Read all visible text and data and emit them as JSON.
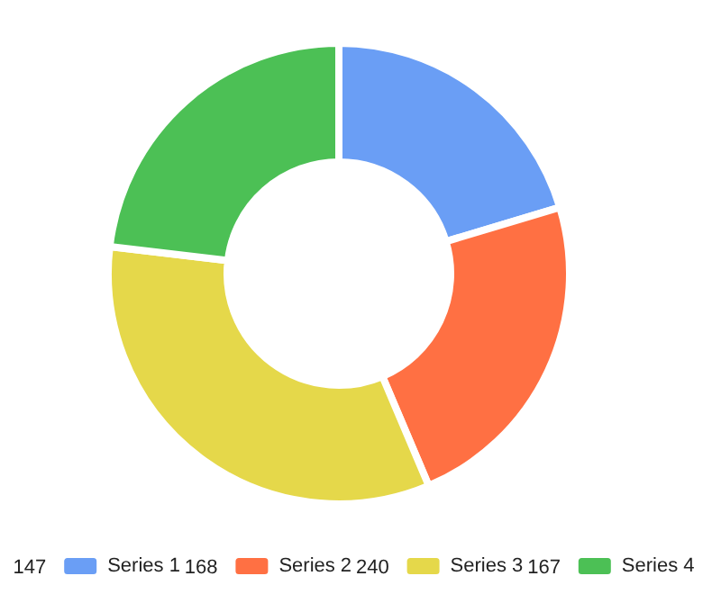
{
  "chart_data": {
    "type": "donut",
    "categories": [
      "Series 1",
      "Series 2",
      "Series 3",
      "Series 4"
    ],
    "values": [
      147,
      168,
      240,
      167
    ],
    "value_labels": [
      "147",
      "168",
      "240",
      "167"
    ],
    "colors": [
      "#6a9ef5",
      "#ff7043",
      "#e5d84a",
      "#4cc055"
    ],
    "legend": "bottom"
  }
}
